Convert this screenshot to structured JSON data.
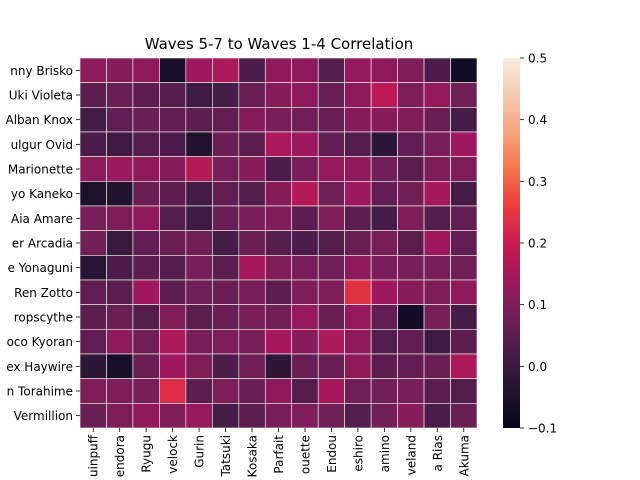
{
  "chart_data": {
    "type": "heatmap",
    "title": "Waves 5-7 to Waves 1-4 Correlation",
    "rows": [
      "nny Brisko",
      "Uki Violeta",
      "Alban Knox",
      "ulgur Ovid",
      "Marionette",
      "yo Kaneko",
      "Aia Amare",
      "er Arcadia",
      "e Yonaguni",
      "Ren Zotto",
      "ropscythe",
      "oco Kyoran",
      "ex Haywire",
      "n Torahime",
      "Vermillion"
    ],
    "columns": [
      "uinpuff",
      "endora",
      "Ryugu",
      "velock",
      "Gurin",
      "Tatsuki",
      "Kosaka",
      "Parfait",
      "ouette",
      "Endou",
      "eshiro",
      "amino",
      "veland",
      "a Rias",
      "Akuma"
    ],
    "values": [
      [
        0.12,
        0.11,
        0.12,
        -0.06,
        0.14,
        0.16,
        0.03,
        0.12,
        0.12,
        0.04,
        0.13,
        0.12,
        0.1,
        0.03,
        -0.07
      ],
      [
        0.05,
        0.07,
        0.05,
        0.04,
        0.01,
        0.02,
        0.07,
        0.11,
        0.12,
        0.07,
        0.12,
        0.18,
        0.1,
        0.13,
        0.08
      ],
      [
        0.02,
        0.06,
        0.07,
        0.06,
        0.05,
        0.06,
        0.11,
        0.09,
        0.08,
        0.07,
        0.11,
        0.11,
        0.1,
        0.07,
        0.02
      ],
      [
        0.03,
        0.01,
        0.04,
        0.03,
        -0.04,
        0.07,
        0.05,
        0.16,
        0.14,
        0.06,
        0.04,
        -0.02,
        0.06,
        0.09,
        0.14
      ],
      [
        0.12,
        0.14,
        0.12,
        0.11,
        0.17,
        0.09,
        0.11,
        0.03,
        0.09,
        0.13,
        0.12,
        0.08,
        0.05,
        0.1,
        0.1
      ],
      [
        -0.05,
        -0.04,
        0.07,
        0.05,
        0.02,
        0.06,
        0.04,
        0.11,
        0.17,
        0.08,
        0.14,
        0.06,
        0.08,
        0.15,
        0.02
      ],
      [
        0.09,
        0.1,
        0.12,
        0.04,
        0.01,
        0.07,
        0.09,
        0.1,
        0.05,
        0.1,
        0.05,
        0.02,
        0.1,
        0.04,
        0.06
      ],
      [
        0.08,
        0.0,
        0.06,
        0.07,
        0.08,
        0.02,
        0.07,
        0.04,
        0.03,
        0.04,
        0.07,
        0.09,
        0.05,
        0.14,
        0.06
      ],
      [
        -0.03,
        0.03,
        0.05,
        0.04,
        0.09,
        0.05,
        0.15,
        0.1,
        0.09,
        0.08,
        0.12,
        0.09,
        0.09,
        0.09,
        0.08
      ],
      [
        0.06,
        0.05,
        0.14,
        0.05,
        0.08,
        0.07,
        0.09,
        0.05,
        0.1,
        0.1,
        0.24,
        0.14,
        0.11,
        0.1,
        0.12
      ],
      [
        0.05,
        0.07,
        0.04,
        0.1,
        0.05,
        0.07,
        0.09,
        0.08,
        0.13,
        0.07,
        0.13,
        0.06,
        -0.07,
        0.09,
        0.02
      ],
      [
        0.06,
        0.12,
        0.08,
        0.16,
        0.09,
        0.1,
        0.09,
        0.15,
        0.11,
        0.16,
        0.12,
        0.04,
        0.06,
        0.01,
        0.05
      ],
      [
        -0.02,
        -0.06,
        0.07,
        0.14,
        0.1,
        0.03,
        0.08,
        -0.02,
        0.07,
        0.07,
        0.12,
        0.05,
        0.06,
        0.07,
        0.16
      ],
      [
        0.1,
        0.1,
        0.09,
        0.23,
        0.05,
        0.1,
        0.07,
        0.12,
        0.04,
        0.15,
        0.08,
        0.08,
        0.09,
        0.05,
        0.04
      ],
      [
        0.07,
        0.1,
        0.12,
        0.1,
        0.13,
        0.02,
        0.05,
        0.09,
        0.1,
        0.08,
        0.04,
        0.08,
        0.11,
        0.03,
        0.07
      ]
    ],
    "vmin": -0.1,
    "vmax": 0.5,
    "colorbar_ticks": [
      "−0.1",
      "0.0",
      "0.1",
      "0.2",
      "0.3",
      "0.4",
      "0.5"
    ],
    "colormap": "rocket",
    "gridlines": "white"
  }
}
